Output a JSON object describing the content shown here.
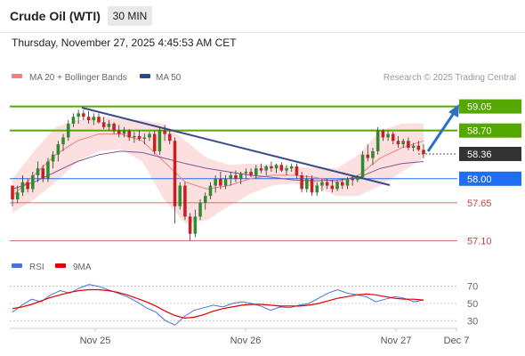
{
  "header": {
    "title": "Crude Oil (WTI)",
    "timeframe": "30 MIN",
    "datetime": "Thursday, November 27, 2025 4:45:53 AM CET"
  },
  "legend": {
    "items": [
      {
        "label": "MA 20 + Bollinger Bands",
        "color": "#f08080"
      },
      {
        "label": "MA 50",
        "color": "#2e4a8c"
      }
    ],
    "credit": "Research © 2025 Trading Central"
  },
  "rsi_legend": {
    "items": [
      {
        "label": "RSI",
        "color": "#4a72d8"
      },
      {
        "label": "9MA",
        "color": "#e00000"
      }
    ]
  },
  "chart_data": [
    {
      "type": "candlestick",
      "grid": false,
      "price_axis": {
        "ylim": [
          56.95,
          59.2
        ]
      },
      "x_labels": [
        "Nov 25",
        "Nov 26",
        "Nov 27",
        "Dec 7"
      ],
      "levels": [
        {
          "value": 59.05,
          "label": "59.05",
          "style": "resistance-green-box",
          "color": "#54a800"
        },
        {
          "value": 58.7,
          "label": "58.70",
          "style": "resistance-green-box",
          "color": "#54a800"
        },
        {
          "value": 58.36,
          "label": "58.36",
          "style": "last-price-dark-box",
          "color": "#333333"
        },
        {
          "value": 58.0,
          "label": "58.00",
          "style": "pivot-blue-box",
          "color": "#1f6ef2"
        },
        {
          "value": 57.65,
          "label": "57.65",
          "style": "support-red-text",
          "color": "#d04040"
        },
        {
          "value": 57.1,
          "label": "57.10",
          "style": "support-red-text",
          "color": "#d04040"
        }
      ],
      "candles": [
        [
          57.9,
          57.9,
          57.6,
          57.7
        ],
        [
          57.7,
          57.9,
          57.65,
          57.8
        ],
        [
          57.8,
          58.05,
          57.75,
          57.95
        ],
        [
          57.95,
          58.0,
          57.8,
          57.85
        ],
        [
          57.85,
          58.1,
          57.8,
          58.05
        ],
        [
          58.05,
          58.25,
          57.95,
          58.15
        ],
        [
          58.15,
          58.2,
          57.95,
          58.0
        ],
        [
          58.0,
          58.3,
          57.95,
          58.25
        ],
        [
          58.25,
          58.4,
          58.15,
          58.35
        ],
        [
          58.35,
          58.55,
          58.25,
          58.5
        ],
        [
          58.5,
          58.65,
          58.4,
          58.6
        ],
        [
          58.6,
          58.85,
          58.55,
          58.8
        ],
        [
          58.8,
          58.95,
          58.75,
          58.9
        ],
        [
          58.9,
          59.0,
          58.8,
          58.95
        ],
        [
          58.95,
          59.0,
          58.85,
          58.9
        ],
        [
          58.9,
          58.98,
          58.8,
          58.85
        ],
        [
          58.85,
          58.95,
          58.78,
          58.9
        ],
        [
          58.9,
          58.95,
          58.8,
          58.82
        ],
        [
          58.82,
          58.9,
          58.72,
          58.75
        ],
        [
          58.75,
          58.85,
          58.7,
          58.8
        ],
        [
          58.8,
          58.82,
          58.65,
          58.7
        ],
        [
          58.7,
          58.78,
          58.6,
          58.65
        ],
        [
          58.65,
          58.75,
          58.6,
          58.7
        ],
        [
          58.7,
          58.72,
          58.55,
          58.6
        ],
        [
          58.6,
          58.68,
          58.52,
          58.62
        ],
        [
          58.62,
          58.7,
          58.55,
          58.58
        ],
        [
          58.58,
          58.66,
          58.5,
          58.6
        ],
        [
          58.6,
          58.68,
          58.55,
          58.65
        ],
        [
          58.65,
          58.7,
          58.35,
          58.4
        ],
        [
          58.4,
          58.75,
          58.35,
          58.7
        ],
        [
          58.7,
          58.78,
          58.55,
          58.65
        ],
        [
          58.65,
          58.72,
          58.5,
          58.55
        ],
        [
          58.55,
          58.6,
          57.35,
          57.6
        ],
        [
          57.6,
          57.95,
          57.55,
          57.9
        ],
        [
          57.9,
          57.95,
          57.4,
          57.45
        ],
        [
          57.45,
          57.5,
          57.1,
          57.2
        ],
        [
          57.2,
          57.55,
          57.15,
          57.45
        ],
        [
          57.45,
          57.7,
          57.4,
          57.65
        ],
        [
          57.65,
          57.8,
          57.55,
          57.75
        ],
        [
          57.75,
          57.95,
          57.7,
          57.9
        ],
        [
          57.9,
          58.05,
          57.8,
          58.0
        ],
        [
          58.0,
          58.1,
          57.85,
          57.9
        ],
        [
          57.9,
          58.05,
          57.85,
          58.0
        ],
        [
          58.0,
          58.1,
          57.9,
          58.05
        ],
        [
          58.05,
          58.12,
          57.95,
          58.0
        ],
        [
          58.0,
          58.1,
          57.92,
          58.08
        ],
        [
          58.08,
          58.15,
          58.0,
          58.1
        ],
        [
          58.1,
          58.15,
          58.02,
          58.05
        ],
        [
          58.05,
          58.2,
          58.0,
          58.15
        ],
        [
          58.15,
          58.22,
          58.08,
          58.12
        ],
        [
          58.12,
          58.2,
          58.05,
          58.18
        ],
        [
          58.18,
          58.25,
          58.1,
          58.15
        ],
        [
          58.15,
          58.22,
          58.08,
          58.2
        ],
        [
          58.2,
          58.24,
          58.1,
          58.12
        ],
        [
          58.12,
          58.2,
          58.05,
          58.15
        ],
        [
          58.15,
          58.22,
          58.1,
          58.18
        ],
        [
          58.18,
          58.22,
          58.0,
          58.05
        ],
        [
          58.05,
          58.1,
          57.8,
          57.85
        ],
        [
          57.85,
          58.05,
          57.8,
          58.0
        ],
        [
          58.0,
          58.05,
          57.75,
          57.8
        ],
        [
          57.8,
          57.95,
          57.75,
          57.9
        ],
        [
          57.9,
          58.0,
          57.82,
          57.95
        ],
        [
          57.95,
          58.0,
          57.85,
          57.9
        ],
        [
          57.9,
          57.98,
          57.8,
          57.85
        ],
        [
          57.85,
          57.98,
          57.82,
          57.95
        ],
        [
          57.95,
          58.0,
          57.85,
          57.9
        ],
        [
          57.9,
          58.02,
          57.85,
          58.0
        ],
        [
          58.0,
          58.05,
          57.9,
          57.98
        ],
        [
          57.98,
          58.05,
          57.95,
          58.02
        ],
        [
          58.02,
          58.4,
          58.0,
          58.35
        ],
        [
          58.35,
          58.5,
          58.25,
          58.3
        ],
        [
          58.3,
          58.45,
          58.2,
          58.4
        ],
        [
          58.4,
          58.75,
          58.35,
          58.7
        ],
        [
          58.7,
          58.72,
          58.55,
          58.6
        ],
        [
          58.6,
          58.7,
          58.55,
          58.65
        ],
        [
          58.65,
          58.68,
          58.5,
          58.55
        ],
        [
          58.55,
          58.62,
          58.45,
          58.5
        ],
        [
          58.5,
          58.58,
          58.45,
          58.55
        ],
        [
          58.55,
          58.6,
          58.42,
          58.45
        ],
        [
          58.45,
          58.52,
          58.4,
          58.48
        ],
        [
          58.48,
          58.55,
          58.4,
          58.42
        ],
        [
          58.42,
          58.5,
          58.3,
          58.36
        ]
      ],
      "series": [
        {
          "name": "MA 20",
          "values": [
            57.75,
            58.05,
            58.35,
            58.55,
            58.65,
            58.65,
            58.55,
            58.25,
            57.95,
            57.85,
            57.9,
            58.0,
            58.05,
            58.05,
            58.02,
            57.95,
            58.05,
            58.3,
            58.45,
            58.55
          ]
        },
        {
          "name": "MA 50",
          "values": [
            57.85,
            57.95,
            58.1,
            58.25,
            58.35,
            58.4,
            58.38,
            58.3,
            58.22,
            58.15,
            58.1,
            58.05,
            58.02,
            57.98,
            57.97,
            57.98,
            58.02,
            58.15,
            58.22,
            58.25
          ]
        }
      ]
    },
    {
      "type": "line",
      "name": "RSI",
      "ylim": [
        20,
        80
      ],
      "y_ticks": [
        30,
        50,
        70
      ],
      "series": [
        {
          "name": "RSI",
          "values": [
            40,
            48,
            55,
            52,
            60,
            65,
            62,
            68,
            72,
            70,
            66,
            62,
            58,
            52,
            45,
            40,
            30,
            25,
            35,
            42,
            45,
            48,
            46,
            50,
            52,
            50,
            47,
            42,
            46,
            45,
            48,
            50,
            56,
            62,
            66,
            62,
            60,
            58,
            52,
            55,
            58,
            56,
            52,
            54
          ]
        },
        {
          "name": "9MA",
          "values": [
            44,
            46,
            49,
            53,
            57,
            60,
            63,
            65,
            66,
            66,
            65,
            63,
            60,
            56,
            52,
            47,
            41,
            36,
            33,
            34,
            37,
            41,
            44,
            46,
            48,
            49,
            49,
            48,
            47,
            47,
            47,
            48,
            50,
            53,
            56,
            58,
            60,
            61,
            60,
            58,
            56,
            55,
            55,
            54
          ]
        }
      ]
    }
  ]
}
